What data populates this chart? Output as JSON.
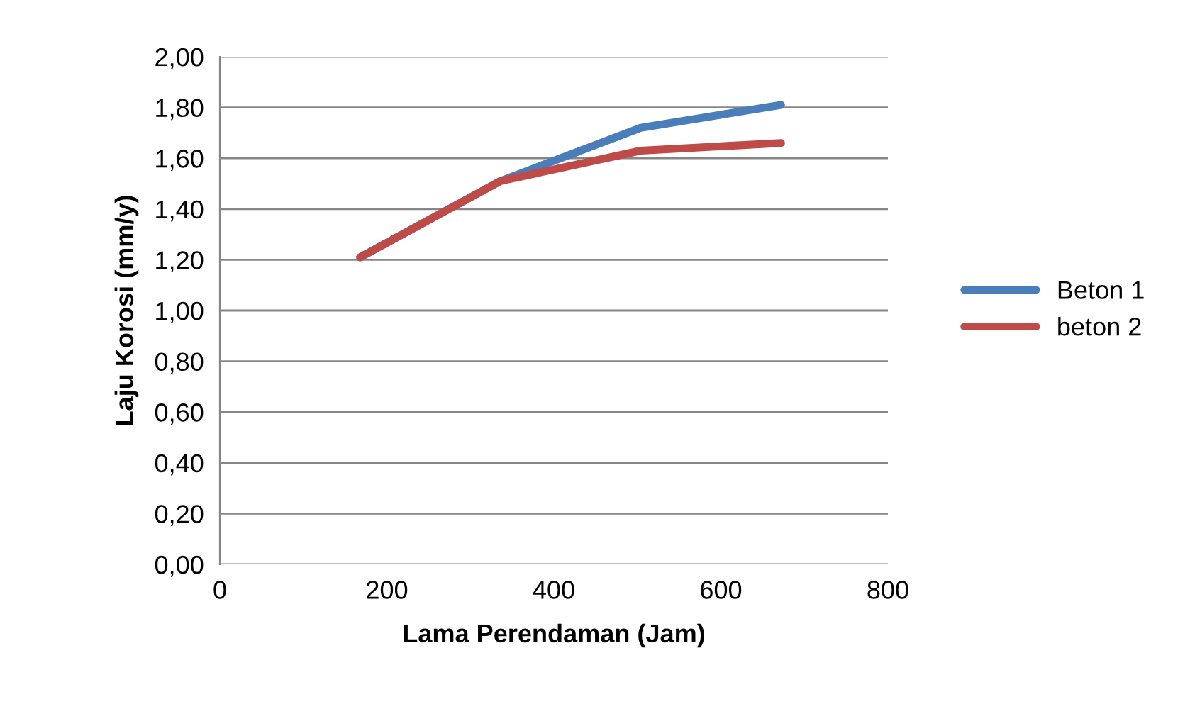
{
  "chart_data": {
    "type": "line",
    "xlabel": "Lama Perendaman (Jam)",
    "ylabel": "Laju Korosi (mm/y)",
    "x": [
      168,
      336,
      504,
      672
    ],
    "series": [
      {
        "name": "Beton 1",
        "color": "#4a7ebb",
        "values": [
          1.21,
          1.51,
          1.72,
          1.81
        ]
      },
      {
        "name": "beton 2",
        "color": "#be4b48",
        "values": [
          1.21,
          1.51,
          1.63,
          1.66
        ]
      }
    ],
    "xlim": [
      0,
      800
    ],
    "xticks": [
      0,
      200,
      400,
      600,
      800
    ],
    "ylim": [
      0,
      2
    ],
    "yticks": [
      {
        "value": 0,
        "label": "0,00"
      },
      {
        "value": 0.2,
        "label": "0,20"
      },
      {
        "value": 0.4,
        "label": "0,40"
      },
      {
        "value": 0.6,
        "label": "0,60"
      },
      {
        "value": 0.8,
        "label": "0,80"
      },
      {
        "value": 1.0,
        "label": "1,00"
      },
      {
        "value": 1.2,
        "label": "1,20"
      },
      {
        "value": 1.4,
        "label": "1,40"
      },
      {
        "value": 1.6,
        "label": "1,60"
      },
      {
        "value": 1.8,
        "label": "1,80"
      },
      {
        "value": 2.0,
        "label": "2,00"
      }
    ],
    "grid": "y",
    "legend": "right",
    "marker": "none",
    "line_style": "solid"
  }
}
